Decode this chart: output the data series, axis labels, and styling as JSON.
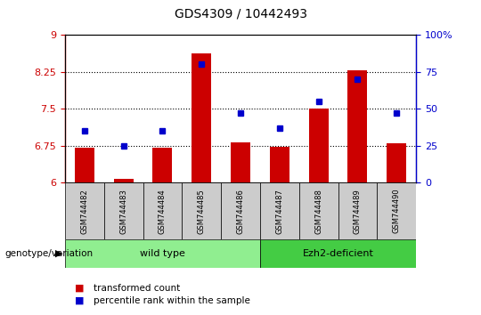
{
  "title": "GDS4309 / 10442493",
  "samples": [
    "GSM744482",
    "GSM744483",
    "GSM744484",
    "GSM744485",
    "GSM744486",
    "GSM744487",
    "GSM744488",
    "GSM744489",
    "GSM744490"
  ],
  "transformed_count": [
    6.7,
    6.08,
    6.7,
    8.62,
    6.82,
    6.73,
    7.5,
    8.27,
    6.8
  ],
  "percentile_rank": [
    35,
    25,
    35,
    80,
    47,
    37,
    55,
    70,
    47
  ],
  "ylim_left": [
    6.0,
    9.0
  ],
  "yticks_left": [
    6.0,
    6.75,
    7.5,
    8.25,
    9.0
  ],
  "yticklabels_left": [
    "6",
    "6.75",
    "7.5",
    "8.25",
    "9"
  ],
  "ylim_right": [
    0,
    100
  ],
  "yticks_right": [
    0,
    25,
    50,
    75,
    100
  ],
  "yticklabels_right": [
    "0",
    "25",
    "50",
    "75",
    "100%"
  ],
  "bar_color": "#cc0000",
  "dot_color": "#0000cc",
  "wt_color": "#90ee90",
  "ezh2_color": "#44cc44",
  "wt_label": "wild type",
  "ezh2_label": "Ezh2-deficient",
  "group_label": "genotype/variation",
  "legend_bar": "transformed count",
  "legend_dot": "percentile rank within the sample",
  "left_color": "#cc0000",
  "right_color": "#0000cc",
  "tick_bg_color": "#cccccc",
  "bar_width": 0.5,
  "dot_gridlines": [
    6.75,
    7.5,
    8.25
  ]
}
